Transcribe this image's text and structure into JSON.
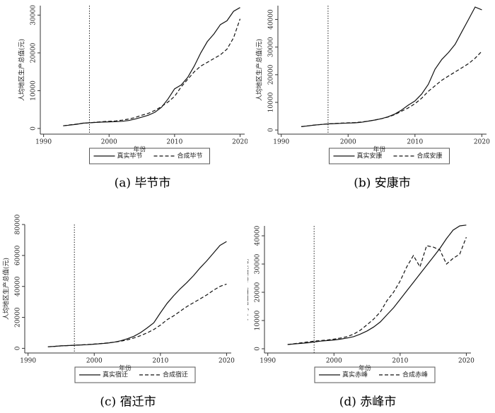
{
  "chart_data": [
    {
      "type": "line",
      "caption": "(a) 毕节市",
      "x_label": "年份",
      "y_label": "人均地区生产总值(元)",
      "x": [
        1993,
        1994,
        1995,
        1996,
        1997,
        1998,
        1999,
        2000,
        2001,
        2002,
        2003,
        2004,
        2005,
        2006,
        2007,
        2008,
        2009,
        2010,
        2011,
        2012,
        2013,
        2014,
        2015,
        2016,
        2017,
        2018,
        2019,
        2020
      ],
      "series": [
        {
          "name": "真实毕节",
          "color": "#111111",
          "dash": "solid",
          "values": [
            700,
            900,
            1100,
            1400,
            1500,
            1600,
            1700,
            1750,
            1800,
            1900,
            2100,
            2500,
            3000,
            3500,
            4300,
            5600,
            7800,
            10500,
            11500,
            13500,
            16500,
            20000,
            23000,
            25000,
            27500,
            28500,
            31000,
            32000
          ]
        },
        {
          "name": "合成毕节",
          "color": "#111111",
          "dash": "dashed",
          "values": [
            700,
            950,
            1150,
            1400,
            1500,
            1650,
            1800,
            1900,
            2000,
            2200,
            2500,
            2900,
            3500,
            4000,
            4800,
            5800,
            7000,
            8500,
            11000,
            13000,
            15000,
            16500,
            17500,
            18500,
            19500,
            21000,
            24000,
            29000
          ]
        }
      ],
      "xlim": [
        1989.5,
        2020.7
      ],
      "xticks": [
        1990,
        2000,
        2010,
        2020
      ],
      "ylim": [
        -1500,
        32500
      ],
      "yticks": [
        0,
        10000,
        20000,
        30000
      ],
      "vline": 1997
    },
    {
      "type": "line",
      "caption": "(b) 安康市",
      "x_label": "年份",
      "y_label": "人均地区生产总值(元)",
      "x": [
        1993,
        1994,
        1995,
        1996,
        1997,
        1998,
        1999,
        2000,
        2001,
        2002,
        2003,
        2004,
        2005,
        2006,
        2007,
        2008,
        2009,
        2010,
        2011,
        2012,
        2013,
        2014,
        2015,
        2016,
        2017,
        2018,
        2019,
        2020
      ],
      "series": [
        {
          "name": "真实安康",
          "color": "#111111",
          "dash": "solid",
          "values": [
            1200,
            1500,
            1800,
            2000,
            2200,
            2300,
            2400,
            2500,
            2600,
            2800,
            3200,
            3600,
            4100,
            4800,
            5800,
            7200,
            9000,
            10500,
            13000,
            16500,
            22000,
            25500,
            28000,
            31000,
            35500,
            40000,
            44500,
            43500
          ]
        },
        {
          "name": "合成安康",
          "color": "#111111",
          "dash": "dashed",
          "values": [
            1200,
            1500,
            1800,
            2000,
            2200,
            2350,
            2500,
            2600,
            2700,
            2900,
            3200,
            3600,
            4100,
            4700,
            5600,
            6800,
            8000,
            9500,
            11500,
            14000,
            16000,
            18000,
            19500,
            21000,
            22500,
            24000,
            26000,
            28500
          ]
        }
      ],
      "xlim": [
        1989.5,
        2020.7
      ],
      "xticks": [
        1990,
        2000,
        2010,
        2020
      ],
      "ylim": [
        -1500,
        45000
      ],
      "yticks": [
        0,
        10000,
        20000,
        30000,
        40000
      ],
      "vline": 1997
    },
    {
      "type": "line",
      "caption": "(c) 宿迁市",
      "x_label": "年份",
      "y_label": "人均地区生产总值(元)",
      "x": [
        1993,
        1994,
        1995,
        1996,
        1997,
        1998,
        1999,
        2000,
        2001,
        2002,
        2003,
        2004,
        2005,
        2006,
        2007,
        2008,
        2009,
        2010,
        2011,
        2012,
        2013,
        2014,
        2015,
        2016,
        2017,
        2018,
        2019,
        2020
      ],
      "series": [
        {
          "name": "真实宿迁",
          "color": "#111111",
          "dash": "solid",
          "values": [
            1000,
            1300,
            1600,
            1800,
            2000,
            2200,
            2400,
            2700,
            3000,
            3400,
            4000,
            4900,
            6200,
            7800,
            10200,
            13200,
            16500,
            23000,
            29000,
            34000,
            38500,
            42500,
            47000,
            52000,
            56500,
            61500,
            66500,
            69000
          ]
        },
        {
          "name": "合成宿迁",
          "color": "#111111",
          "dash": "dashed",
          "values": [
            1000,
            1300,
            1600,
            1800,
            2000,
            2200,
            2450,
            2750,
            3100,
            3500,
            4000,
            4600,
            5500,
            6700,
            8200,
            10000,
            12200,
            15000,
            18500,
            21000,
            24000,
            27000,
            29500,
            32000,
            34500,
            37500,
            40000,
            41500
          ]
        }
      ],
      "xlim": [
        1989.5,
        2020.7
      ],
      "xticks": [
        1990,
        2000,
        2010,
        2020
      ],
      "ylim": [
        -3000,
        80000
      ],
      "yticks": [
        0,
        20000,
        40000,
        60000,
        80000
      ],
      "vline": 1997
    },
    {
      "type": "line",
      "caption": "(d) 赤峰市",
      "x_label": "年份",
      "y_label": "人均地区生产总值(元)",
      "x": [
        1993,
        1994,
        1995,
        1996,
        1997,
        1998,
        1999,
        2000,
        2001,
        2002,
        2003,
        2004,
        2005,
        2006,
        2007,
        2008,
        2009,
        2010,
        2011,
        2012,
        2013,
        2014,
        2015,
        2016,
        2017,
        2018,
        2019,
        2020
      ],
      "series": [
        {
          "name": "真实赤峰",
          "color": "#111111",
          "dash": "solid",
          "values": [
            1500,
            1700,
            1900,
            2100,
            2400,
            2700,
            2900,
            3100,
            3400,
            3800,
            4300,
            5200,
            6300,
            7700,
            9500,
            12000,
            14500,
            17500,
            20500,
            23500,
            26500,
            29500,
            32500,
            35500,
            39000,
            42000,
            43500,
            43800
          ]
        },
        {
          "name": "合成赤峰",
          "color": "#111111",
          "dash": "dashed",
          "values": [
            1500,
            1800,
            2100,
            2400,
            2700,
            2900,
            3100,
            3400,
            3800,
            4300,
            5200,
            6600,
            8500,
            10500,
            13000,
            17000,
            20000,
            24000,
            29000,
            33000,
            29000,
            36500,
            36000,
            35000,
            30000,
            32000,
            33500,
            39500
          ]
        }
      ],
      "xlim": [
        1989.5,
        2020.7
      ],
      "xticks": [
        1990,
        2000,
        2010,
        2020
      ],
      "ylim": [
        -1500,
        43500
      ],
      "yticks": [
        0,
        10000,
        20000,
        30000,
        40000
      ],
      "vline": 1997
    }
  ]
}
